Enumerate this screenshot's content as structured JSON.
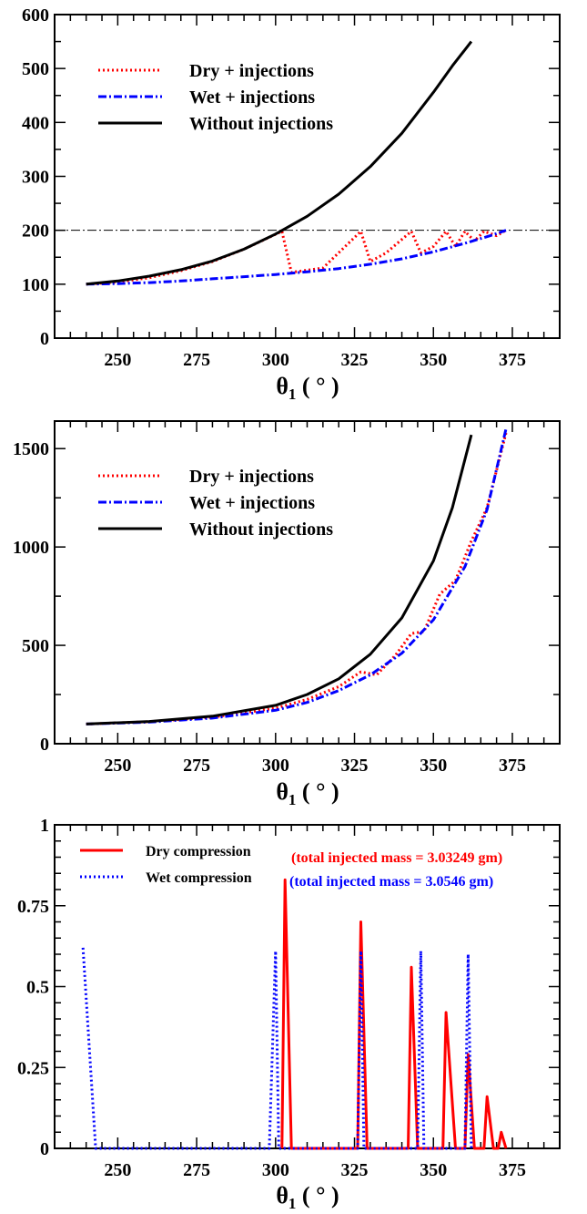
{
  "colors": {
    "dry": "#ff0000",
    "wet": "#0000ff",
    "without": "#000000",
    "axis": "#000000"
  },
  "chart_data": [
    {
      "type": "line",
      "xlim": [
        230,
        390
      ],
      "ylim": [
        0,
        600
      ],
      "xticks": [
        250,
        275,
        300,
        325,
        350,
        375
      ],
      "yticks": [
        0,
        100,
        200,
        300,
        400,
        500,
        600
      ],
      "xlabel": {
        "main": "θ",
        "sub": "1",
        "rest": " ( ° )"
      },
      "ylabel": "",
      "legend_position": "top-left",
      "reference_line": {
        "y": 200,
        "style": "dash-dot"
      },
      "series": [
        {
          "name": "Dry + injections",
          "style": "dotted",
          "color": "#ff0000",
          "x": [
            240,
            250,
            260,
            270,
            280,
            290,
            302,
            305,
            315,
            327,
            330,
            335,
            343,
            346,
            350,
            354,
            357,
            360,
            363,
            366,
            370,
            373
          ],
          "y": [
            100,
            104,
            112,
            125,
            142,
            165,
            198,
            122,
            130,
            198,
            142,
            158,
            198,
            158,
            170,
            198,
            170,
            198,
            180,
            198,
            190,
            200
          ]
        },
        {
          "name": "Wet + injections",
          "style": "dash-dot",
          "color": "#0000ff",
          "x": [
            240,
            250,
            260,
            270,
            280,
            290,
            300,
            310,
            320,
            330,
            340,
            350,
            360,
            368,
            373
          ],
          "y": [
            100,
            101,
            103,
            106,
            110,
            114,
            118,
            123,
            129,
            137,
            147,
            160,
            176,
            190,
            200
          ]
        },
        {
          "name": "Without injections",
          "style": "solid",
          "color": "#000000",
          "x": [
            240,
            250,
            260,
            270,
            280,
            290,
            300,
            310,
            320,
            330,
            340,
            350,
            356,
            362
          ],
          "y": [
            100,
            106,
            115,
            127,
            143,
            165,
            193,
            226,
            267,
            318,
            380,
            456,
            505,
            550
          ]
        }
      ]
    },
    {
      "type": "line",
      "xlim": [
        230,
        390
      ],
      "ylim": [
        0,
        1640
      ],
      "xticks": [
        250,
        275,
        300,
        325,
        350,
        375
      ],
      "yticks": [
        0,
        500,
        1000,
        1500
      ],
      "xlabel": {
        "main": "θ",
        "sub": "1",
        "rest": " ( ° )"
      },
      "ylabel": "",
      "legend_position": "top-left",
      "series": [
        {
          "name": "Dry + injections",
          "style": "dotted",
          "color": "#ff0000",
          "x": [
            240,
            260,
            280,
            300,
            310,
            320,
            327,
            332,
            338,
            343,
            347,
            352,
            357,
            362,
            367,
            373
          ],
          "y": [
            100,
            112,
            135,
            180,
            225,
            290,
            365,
            350,
            450,
            560,
            570,
            760,
            830,
            1030,
            1200,
            1580
          ]
        },
        {
          "name": "Wet + injections",
          "style": "dash-dot",
          "color": "#0000ff",
          "x": [
            240,
            260,
            280,
            300,
            310,
            320,
            330,
            340,
            350,
            360,
            367,
            373
          ],
          "y": [
            100,
            110,
            130,
            170,
            210,
            270,
            350,
            460,
            630,
            900,
            1190,
            1600
          ]
        },
        {
          "name": "Without injections",
          "style": "solid",
          "color": "#000000",
          "x": [
            240,
            260,
            280,
            300,
            310,
            320,
            330,
            340,
            350,
            356,
            362
          ],
          "y": [
            100,
            113,
            140,
            195,
            250,
            330,
            455,
            640,
            930,
            1200,
            1570
          ]
        }
      ]
    },
    {
      "type": "line",
      "xlim": [
        230,
        390
      ],
      "ylim": [
        0,
        1
      ],
      "xticks": [
        250,
        275,
        300,
        325,
        350,
        375
      ],
      "yticks": [
        0,
        0.25,
        0.5,
        0.75,
        1
      ],
      "ytick_labels": [
        "0",
        "0.25",
        "0.5",
        "0.75",
        "1"
      ],
      "xlabel": {
        "main": "θ",
        "sub": "1",
        "rest": " ( ° )"
      },
      "ylabel": "",
      "legend_position": "top-left",
      "annotations": [
        {
          "text": "(total injected mass = 3.03249 gm)",
          "color": "#ff0000"
        },
        {
          "text": "(total injected mass = 3.0546 gm)",
          "color": "#0000ff"
        }
      ],
      "series": [
        {
          "name": "Dry compression",
          "style": "solid",
          "color": "#ff0000",
          "x": [
            302,
            303,
            305,
            326,
            327,
            329,
            342,
            343,
            345,
            353,
            354,
            357,
            360,
            361,
            363,
            366,
            367,
            369,
            370.5,
            371.5,
            373
          ],
          "y": [
            0,
            0.83,
            0,
            0,
            0.7,
            0,
            0,
            0.56,
            0,
            0,
            0.42,
            0,
            0,
            0.29,
            0,
            0,
            0.16,
            0,
            0,
            0.05,
            0
          ]
        },
        {
          "name": "Wet compression",
          "style": "dotted",
          "color": "#0000ff",
          "x": [
            239,
            243,
            298,
            300,
            301,
            326,
            327,
            328,
            345,
            346,
            347,
            360,
            361,
            362
          ],
          "y": [
            0.62,
            0,
            0,
            0.61,
            0,
            0,
            0.61,
            0,
            0,
            0.61,
            0,
            0,
            0.6,
            0
          ]
        }
      ]
    }
  ]
}
